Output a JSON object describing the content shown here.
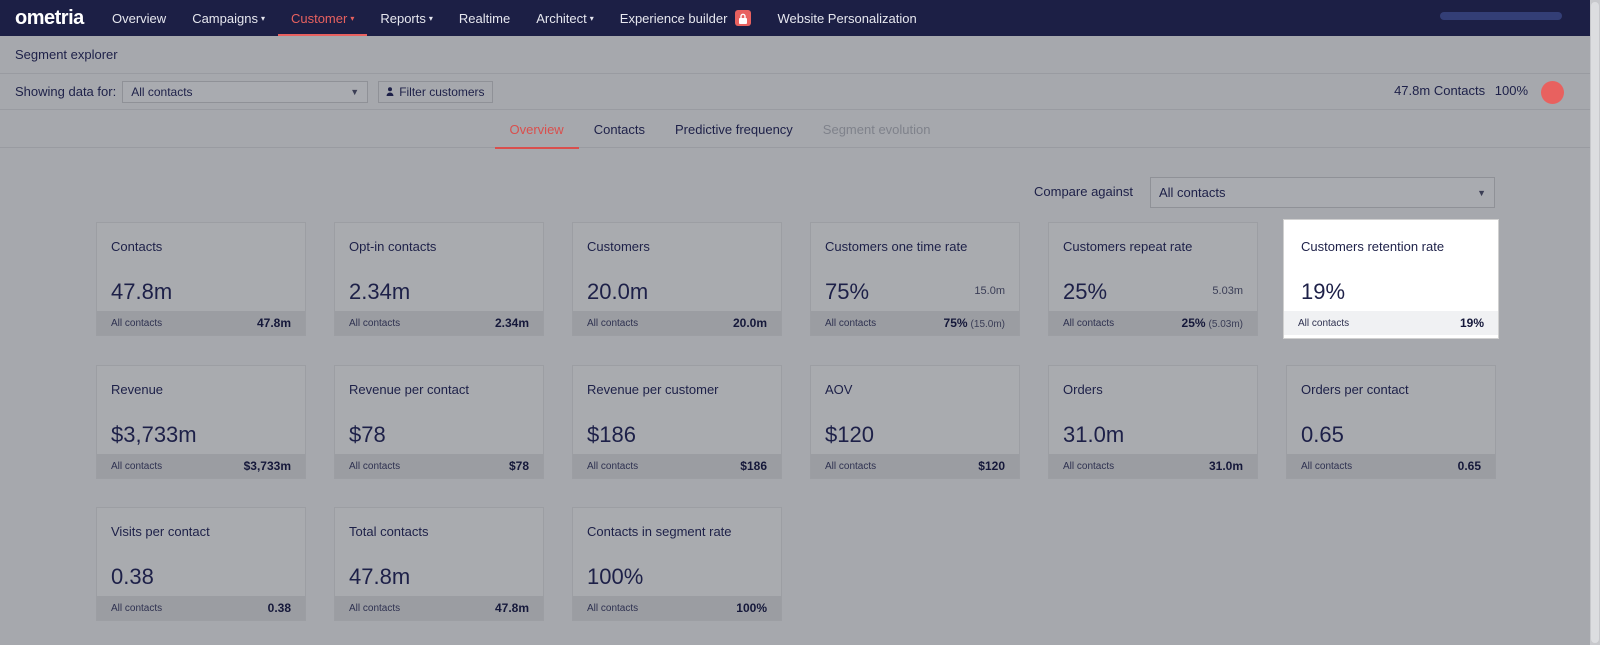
{
  "nav": {
    "logo": "ometria",
    "items": [
      {
        "label": "Overview"
      },
      {
        "label": "Campaigns",
        "caret": "▾"
      },
      {
        "label": "Customer",
        "caret": "▾"
      },
      {
        "label": "Reports",
        "caret": "▾"
      },
      {
        "label": "Realtime"
      },
      {
        "label": "Architect",
        "caret": "▾"
      },
      {
        "label": "Experience builder"
      },
      {
        "label": "Website Personalization"
      }
    ]
  },
  "page": {
    "title": "Segment explorer"
  },
  "filter": {
    "label": "Showing data for:",
    "selected": "All contacts",
    "button": "Filter customers",
    "contacts_count": "47.8m Contacts",
    "percent": "100%"
  },
  "tabs": [
    {
      "label": "Overview"
    },
    {
      "label": "Contacts"
    },
    {
      "label": "Predictive frequency"
    },
    {
      "label": "Segment evolution"
    }
  ],
  "compare": {
    "label": "Compare against",
    "selected": "All contacts"
  },
  "colors": {
    "accent": "#e8615f",
    "nav_bg": "#1c1f45"
  },
  "cards": [
    {
      "title": "Contacts",
      "value": "47.8m",
      "foot_label": "All contacts",
      "foot_value": "47.8m"
    },
    {
      "title": "Opt-in contacts",
      "value": "2.34m",
      "foot_label": "All contacts",
      "foot_value": "2.34m"
    },
    {
      "title": "Customers",
      "value": "20.0m",
      "foot_label": "All contacts",
      "foot_value": "20.0m"
    },
    {
      "title": "Customers one time rate",
      "value": "75%",
      "side": "15.0m",
      "foot_label": "All contacts",
      "foot_value": "75%",
      "foot_sub": "(15.0m)"
    },
    {
      "title": "Customers repeat rate",
      "value": "25%",
      "side": "5.03m",
      "foot_label": "All contacts",
      "foot_value": "25%",
      "foot_sub": "(5.03m)"
    },
    {
      "title": "Customers retention rate",
      "value": "19%",
      "foot_label": "All contacts",
      "foot_value": "19%"
    },
    {
      "title": "Revenue",
      "value": "$3,733m",
      "foot_label": "All contacts",
      "foot_value": "$3,733m"
    },
    {
      "title": "Revenue per contact",
      "value": "$78",
      "foot_label": "All contacts",
      "foot_value": "$78"
    },
    {
      "title": "Revenue per customer",
      "value": "$186",
      "foot_label": "All contacts",
      "foot_value": "$186"
    },
    {
      "title": "AOV",
      "value": "$120",
      "foot_label": "All contacts",
      "foot_value": "$120"
    },
    {
      "title": "Orders",
      "value": "31.0m",
      "foot_label": "All contacts",
      "foot_value": "31.0m"
    },
    {
      "title": "Orders per contact",
      "value": "0.65",
      "foot_label": "All contacts",
      "foot_value": "0.65"
    },
    {
      "title": "Visits per contact",
      "value": "0.38",
      "foot_label": "All contacts",
      "foot_value": "0.38"
    },
    {
      "title": "Total contacts",
      "value": "47.8m",
      "foot_label": "All contacts",
      "foot_value": "47.8m"
    },
    {
      "title": "Contacts in segment rate",
      "value": "100%",
      "foot_label": "All contacts",
      "foot_value": "100%"
    }
  ]
}
